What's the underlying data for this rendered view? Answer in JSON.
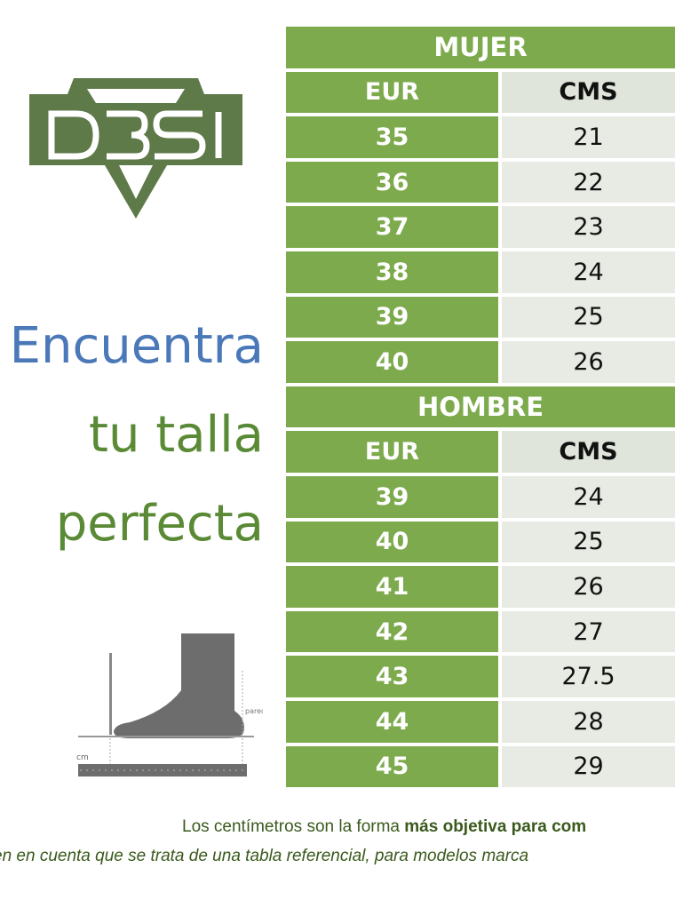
{
  "brand": {
    "logo_text": "D3SI",
    "logo_color": "#5e7a48"
  },
  "slogan": {
    "line1": "Encuentra",
    "line2": "tu talla",
    "line3": "perfecta"
  },
  "illustration": {
    "wall_label": "pared",
    "ruler_label": "cm"
  },
  "colors": {
    "green": "#7daa4c",
    "light": "#e8ebe3",
    "blue": "#4a78b8"
  },
  "women": {
    "title": "MUJER",
    "col_eur": "EUR",
    "col_cms": "CMS",
    "rows": [
      {
        "eur": "35",
        "cms": "21"
      },
      {
        "eur": "36",
        "cms": "22"
      },
      {
        "eur": "37",
        "cms": "23"
      },
      {
        "eur": "38",
        "cms": "24"
      },
      {
        "eur": "39",
        "cms": "25"
      },
      {
        "eur": "40",
        "cms": "26"
      }
    ]
  },
  "men": {
    "title": "HOMBRE",
    "col_eur": "EUR",
    "col_cms": "CMS",
    "rows": [
      {
        "eur": "39",
        "cms": "24"
      },
      {
        "eur": "40",
        "cms": "25"
      },
      {
        "eur": "41",
        "cms": "26"
      },
      {
        "eur": "42",
        "cms": "27"
      },
      {
        "eur": "43",
        "cms": "27.5"
      },
      {
        "eur": "44",
        "cms": "28"
      },
      {
        "eur": "45",
        "cms": "29"
      }
    ]
  },
  "notes": {
    "line1_plain": "Los centímetros son la forma ",
    "line1_bold": "más objetiva para com",
    "line2": "en en cuenta que se trata de una tabla referencial, para modelos marca"
  }
}
